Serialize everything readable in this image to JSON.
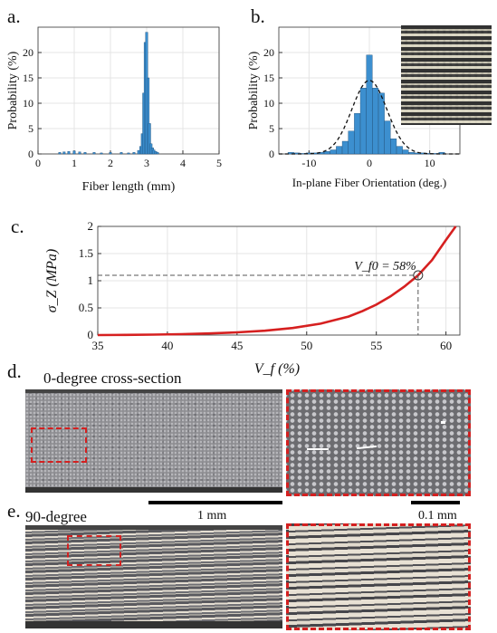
{
  "panels": {
    "a": {
      "label": "a."
    },
    "b": {
      "label": "b."
    },
    "c": {
      "label": "c."
    },
    "d": {
      "label": "d.",
      "caption": "0-degree cross-section",
      "scale_bar_1": "1 mm",
      "scale_bar_2": "0.1 mm"
    },
    "e": {
      "label": "e.",
      "caption": "90-degree"
    }
  },
  "colors": {
    "bar": "#3c8fcf",
    "curve": "#d62020",
    "dashed_box": "#d42020"
  },
  "chart_data": [
    {
      "id": "a",
      "type": "bar",
      "xlabel": "Fiber length (mm)",
      "ylabel": "Probability (%)",
      "xlim": [
        0,
        5
      ],
      "ylim": [
        0,
        25
      ],
      "xticks": [
        "0",
        "1",
        "2",
        "3",
        "4",
        "5"
      ],
      "yticks": [
        "0",
        "5",
        "10",
        "15",
        "20"
      ],
      "grid": true,
      "x": [
        0.6,
        0.72,
        0.85,
        1.0,
        1.15,
        1.3,
        1.55,
        1.75,
        2.0,
        2.3,
        2.5,
        2.65,
        2.78,
        2.84,
        2.88,
        2.92,
        2.96,
        3.0,
        3.04,
        3.08,
        3.12,
        3.16,
        3.2,
        3.25,
        3.3
      ],
      "values": [
        0.3,
        0.4,
        0.5,
        0.6,
        0.4,
        0.3,
        0.3,
        0.2,
        0.3,
        0.3,
        0.2,
        0.3,
        0.7,
        1.5,
        4,
        12,
        22,
        24,
        15,
        6,
        2,
        1.2,
        0.8,
        0.5,
        0.3
      ]
    },
    {
      "id": "b",
      "type": "bar",
      "xlabel": "In-plane Fiber Orientation (deg.)",
      "ylabel": "Probability (%)",
      "xlim": [
        -15,
        15
      ],
      "ylim": [
        0,
        25
      ],
      "xticks": [
        "-10",
        "0",
        "10"
      ],
      "yticks": [
        "0",
        "5",
        "10",
        "15",
        "20"
      ],
      "grid": true,
      "x": [
        -13,
        -12,
        -11,
        -10,
        -9,
        -8,
        -7,
        -6,
        -5,
        -4,
        -3,
        -2,
        -1,
        0,
        1,
        2,
        3,
        4,
        5,
        6,
        7,
        8,
        9,
        10,
        11,
        12
      ],
      "values": [
        0.3,
        0.2,
        0.1,
        0.2,
        0.2,
        0.3,
        0.5,
        0.8,
        1.5,
        2.5,
        4.5,
        8,
        13,
        19.5,
        13,
        12,
        6.5,
        3,
        1.5,
        0.8,
        0.3,
        0.2,
        0.2,
        0.1,
        0.1,
        0.3
      ],
      "fit": "dashed gaussian"
    },
    {
      "id": "c",
      "type": "line",
      "xlabel": "V_f  (%)",
      "ylabel": "σ_Z (MPa)",
      "xlim": [
        35,
        61
      ],
      "ylim": [
        0,
        2
      ],
      "xticks": [
        "35",
        "40",
        "45",
        "50",
        "55",
        "60"
      ],
      "yticks": [
        "0",
        "0.5",
        "1",
        "1.5",
        "2"
      ],
      "grid": true,
      "x": [
        35,
        37,
        39,
        41,
        43,
        45,
        47,
        49,
        51,
        53,
        54,
        55,
        56,
        57,
        58,
        59,
        60,
        60.7
      ],
      "y": [
        0.0,
        0.003,
        0.008,
        0.016,
        0.03,
        0.05,
        0.08,
        0.13,
        0.21,
        0.34,
        0.44,
        0.56,
        0.71,
        0.89,
        1.1,
        1.38,
        1.75,
        2.0
      ],
      "annotation": {
        "label": "V_f0 = 58%",
        "x": 58,
        "y": 1.1
      }
    }
  ]
}
